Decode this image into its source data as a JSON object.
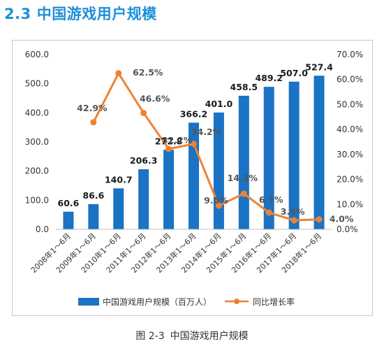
{
  "heading": {
    "number": "2.3",
    "title": "中国游戏用户规模"
  },
  "caption": {
    "figure": "图 2-3",
    "title": "中国游戏用户规模"
  },
  "colors": {
    "bar": "#1a73c4",
    "line": "#ee8233",
    "heading": "#1f8fd9"
  },
  "chart_data": {
    "type": "bar+line",
    "categories": [
      "2008年1～6月",
      "2009年1～6月",
      "2010年1～6月",
      "2011年1～6月",
      "2012年1～6月",
      "2013年1～6月",
      "2014年1～6月",
      "2015年1～6月",
      "2016年1～6月",
      "2017年1～6月",
      "2018年1～6月"
    ],
    "series": [
      {
        "name": "中国游戏用户规模（百万人）",
        "type": "bar",
        "axis": "left",
        "values": [
          60.6,
          86.6,
          140.7,
          206.3,
          272.8,
          366.2,
          401.0,
          458.5,
          489.2,
          507.0,
          527.4
        ],
        "labels": [
          "60.6",
          "86.6",
          "140.7",
          "206.3",
          "272.8",
          "366.2",
          "401.0",
          "458.5",
          "489.2",
          "507.0",
          "527.4"
        ]
      },
      {
        "name": "同比增长率",
        "type": "line",
        "axis": "right",
        "values": [
          null,
          42.9,
          62.5,
          46.6,
          32.2,
          34.2,
          9.5,
          14.3,
          6.7,
          3.6,
          4.0
        ],
        "labels": [
          null,
          "42.9%",
          "62.5%",
          "46.6%",
          "32.2%",
          "34.2%",
          "9.5%",
          "14.3%",
          "6.7%",
          "3.6%",
          "4.0%"
        ]
      }
    ],
    "y_left": {
      "min": 0,
      "max": 600,
      "ticks": [
        "0.0",
        "100.0",
        "200.0",
        "300.0",
        "400.0",
        "500.0",
        "600.0"
      ]
    },
    "y_right": {
      "min": 0,
      "max": 70,
      "ticks": [
        "0.0%",
        "10.0%",
        "20.0%",
        "30.0%",
        "40.0%",
        "50.0%",
        "60.0%",
        "70.0%"
      ]
    },
    "grid": false,
    "legend_position": "bottom"
  }
}
